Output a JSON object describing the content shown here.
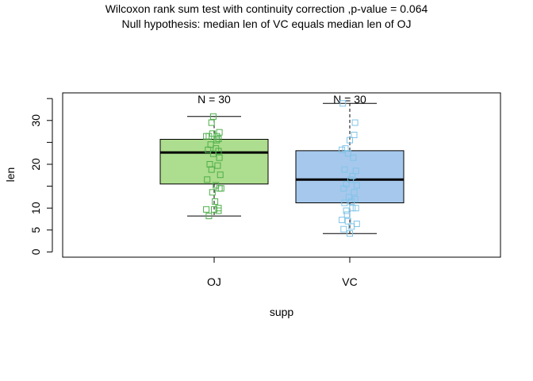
{
  "chart_data": {
    "type": "box",
    "title": "Wilcoxon rank sum test with continuity correction ,p-value =  0.064",
    "subtitle": "Null hypothesis: median len of  VC equals median len of  OJ",
    "xlabel": "supp",
    "ylabel": "len",
    "categories": [
      "OJ",
      "VC"
    ],
    "y_ticks": [
      0,
      5,
      10,
      20,
      30
    ],
    "ylim": [
      -1.2,
      36.3
    ],
    "boxes": [
      {
        "category": "OJ",
        "count_label": "N = 30",
        "color": "#addd8e",
        "point_color": "#4daf4a",
        "min": 8.2,
        "q1": 15.5,
        "median": 22.7,
        "q3": 25.7,
        "max": 30.9,
        "points": [
          [
            -0.01,
            30.9
          ],
          [
            -0.03,
            29.5
          ],
          [
            0.06,
            27.3
          ],
          [
            -0.02,
            27.0
          ],
          [
            -0.09,
            26.4
          ],
          [
            -0.06,
            26.4
          ],
          [
            0.03,
            26.4
          ],
          [
            0.05,
            25.8
          ],
          [
            0.03,
            25.5
          ],
          [
            -0.04,
            24.5
          ],
          [
            0.02,
            23.6
          ],
          [
            -0.07,
            23.3
          ],
          [
            0.05,
            23.0
          ],
          [
            -0.01,
            22.4
          ],
          [
            0.06,
            21.5
          ],
          [
            -0.05,
            20.0
          ],
          [
            0.04,
            19.7
          ],
          [
            -0.03,
            18.8
          ],
          [
            0.07,
            17.6
          ],
          [
            -0.08,
            16.5
          ],
          [
            0.02,
            15.2
          ],
          [
            0.06,
            14.5
          ],
          [
            0.08,
            14.5
          ],
          [
            -0.02,
            13.6
          ],
          [
            0.05,
            10.0
          ],
          [
            0.0,
            9.7
          ],
          [
            -0.09,
            9.7
          ],
          [
            0.05,
            9.4
          ],
          [
            -0.06,
            8.2
          ],
          [
            0.01,
            11.5
          ]
        ]
      },
      {
        "category": "VC",
        "count_label": "N = 30",
        "color": "#a6c8ec",
        "point_color": "#80c4e8",
        "min": 4.2,
        "q1": 11.2,
        "median": 16.5,
        "q3": 23.1,
        "max": 33.9,
        "points": [
          [
            -0.08,
            33.9
          ],
          [
            0.06,
            29.5
          ],
          [
            0.05,
            26.7
          ],
          [
            0.0,
            25.5
          ],
          [
            -0.05,
            23.6
          ],
          [
            -0.09,
            23.3
          ],
          [
            -0.02,
            22.5
          ],
          [
            0.04,
            21.5
          ],
          [
            0.07,
            18.5
          ],
          [
            -0.06,
            18.8
          ],
          [
            0.03,
            17.3
          ],
          [
            0.01,
            16.5
          ],
          [
            -0.04,
            15.5
          ],
          [
            0.08,
            15.2
          ],
          [
            -0.07,
            14.5
          ],
          [
            0.05,
            13.6
          ],
          [
            -0.01,
            12.5
          ],
          [
            0.02,
            11.5
          ],
          [
            -0.06,
            11.2
          ],
          [
            0.03,
            10.0
          ],
          [
            0.07,
            10.0
          ],
          [
            -0.03,
            8.5
          ],
          [
            -0.09,
            7.3
          ],
          [
            -0.02,
            7.0
          ],
          [
            0.08,
            6.4
          ],
          [
            -0.07,
            5.2
          ],
          [
            0.0,
            4.2
          ],
          [
            0.02,
            5.8
          ],
          [
            -0.04,
            9.4
          ],
          [
            0.06,
            12.0
          ]
        ]
      }
    ],
    "grid": false,
    "legend": "none"
  }
}
